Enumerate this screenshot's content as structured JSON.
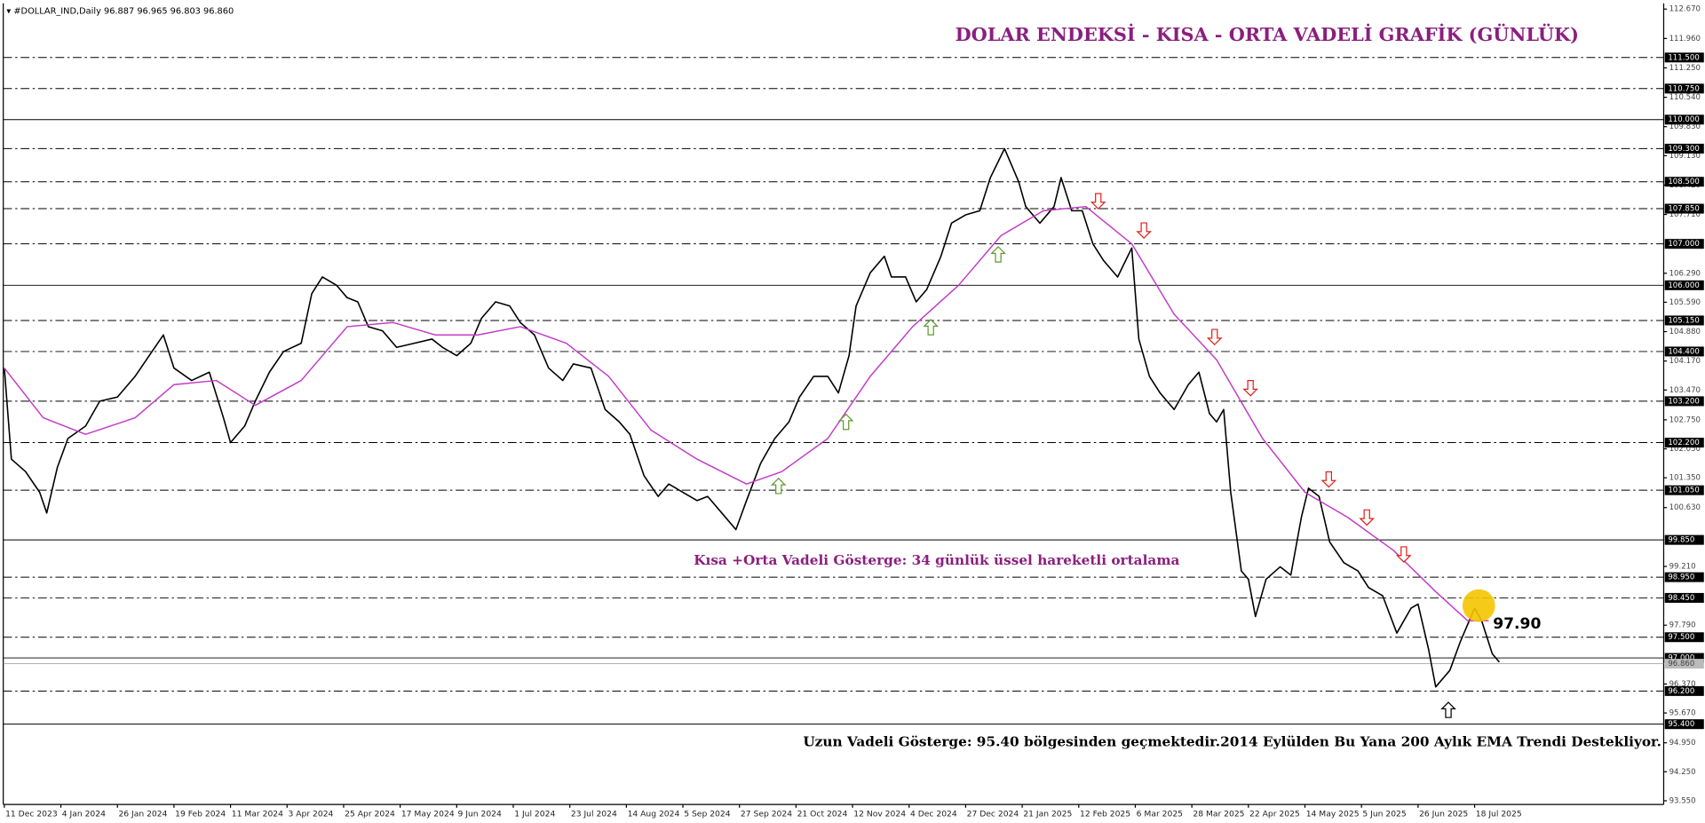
{
  "chart_data": {
    "type": "line",
    "header": "▾ #DOLLAR_IND,Daily  96.887 96.965 96.803 96.860",
    "title": "DOLAR ENDEKSİ - KISA - ORTA VADELİ GRAFİK (GÜNLÜK)",
    "annotations": [
      "Kısa +Orta Vadeli Gösterge: 34 günlük üssel hareketli ortalama",
      "Uzun Vadeli Gösterge: 95.40 bölgesinden geçmektedir.2014 Eylülden Bu Yana 200 Aylık EMA Trendi Destekliyor.",
      "97.90"
    ],
    "series": [
      {
        "color": "#000000",
        "x": [
          0,
          2,
          6,
          10,
          12,
          15,
          18,
          23,
          27,
          32,
          37,
          41,
          45,
          48,
          53,
          58,
          62,
          64,
          68,
          71,
          75,
          79,
          84,
          87,
          90,
          94,
          97,
          100,
          103,
          107,
          111,
          116,
          121,
          124,
          128,
          132,
          135,
          139,
          143,
          146,
          150,
          154,
          158,
          161,
          166,
          170,
          174,
          177,
          181,
          185,
          188,
          192,
          196,
          199,
          203,
          207,
          210,
          214,
          218,
          222,
          225,
          229,
          233,
          236,
          239,
          241,
          245,
          249,
          251,
          255,
          258,
          261,
          265,
          268,
          272,
          276,
          279,
          283,
          287,
          289,
          293,
          297,
          299,
          302,
          305,
          308,
          311,
          315,
          319,
          321,
          324,
          327,
          331,
          335,
          338,
          341,
          343,
          345,
          347,
          350,
          352,
          354,
          357,
          361,
          364,
          367,
          369,
          372,
          375,
          379,
          383,
          386,
          390,
          394,
          398,
          400,
          403,
          405,
          409,
          412,
          416,
          418,
          421,
          423
        ],
        "values": [
          104.0,
          101.8,
          101.5,
          101.0,
          100.5,
          101.6,
          102.3,
          102.6,
          103.2,
          103.3,
          103.8,
          104.3,
          104.8,
          104.0,
          103.7,
          103.9,
          102.8,
          102.2,
          102.6,
          103.2,
          103.9,
          104.4,
          104.6,
          105.8,
          106.2,
          106.0,
          105.7,
          105.6,
          105.0,
          104.9,
          104.5,
          104.6,
          104.7,
          104.5,
          104.3,
          104.6,
          105.2,
          105.6,
          105.5,
          105.1,
          104.8,
          104.0,
          103.7,
          104.1,
          104.0,
          103.0,
          102.7,
          102.4,
          101.4,
          100.9,
          101.2,
          101.0,
          100.8,
          100.9,
          100.5,
          100.1,
          100.8,
          101.7,
          102.3,
          102.7,
          103.3,
          103.8,
          103.8,
          103.4,
          104.3,
          105.5,
          106.3,
          106.7,
          106.2,
          106.2,
          105.6,
          105.9,
          106.7,
          107.5,
          107.7,
          107.8,
          108.6,
          109.3,
          108.5,
          107.9,
          107.5,
          107.9,
          108.6,
          107.8,
          107.8,
          107.0,
          106.6,
          106.2,
          106.9,
          104.7,
          103.8,
          103.4,
          103.0,
          103.6,
          103.9,
          102.9,
          102.7,
          103.0,
          101.0,
          99.1,
          98.9,
          98.0,
          98.9,
          99.2,
          99.0,
          100.4,
          101.1,
          100.9,
          99.8,
          99.3,
          99.1,
          98.7,
          98.5,
          97.6,
          98.2,
          98.3,
          97.2,
          96.3,
          96.7,
          97.4,
          98.2,
          97.9,
          97.1,
          96.9
        ]
      },
      {
        "color": "#c23bc7",
        "x": [
          0,
          11,
          23,
          37,
          48,
          60,
          71,
          84,
          97,
          110,
          122,
          134,
          146,
          159,
          171,
          183,
          196,
          210,
          220,
          233,
          245,
          257,
          270,
          282,
          294,
          306,
          319,
          331,
          343,
          356,
          368,
          380,
          393,
          405,
          414,
          420
        ],
        "values": [
          104.0,
          102.8,
          102.4,
          102.8,
          103.6,
          103.7,
          103.1,
          103.7,
          105.0,
          105.1,
          104.8,
          104.8,
          105.0,
          104.6,
          103.8,
          102.5,
          101.8,
          101.2,
          101.5,
          102.3,
          103.8,
          105.0,
          106.0,
          107.2,
          107.8,
          107.9,
          107.0,
          105.3,
          104.2,
          102.3,
          101.0,
          100.4,
          99.6,
          98.6,
          97.9,
          97.9
        ]
      }
    ],
    "xlim": [
      -0.3,
      469.5
    ],
    "ylim": [
      93.46,
      112.81
    ],
    "xticks": [
      {
        "value": 0,
        "label": "11 Dec 2023"
      },
      {
        "value": 16,
        "label": "4 Jan 2024"
      },
      {
        "value": 32,
        "label": "26 Jan 2024"
      },
      {
        "value": 48,
        "label": "19 Feb 2024"
      },
      {
        "value": 64,
        "label": "11 Mar 2024"
      },
      {
        "value": 80,
        "label": "3 Apr 2024"
      },
      {
        "value": 96,
        "label": "25 Apr 2024"
      },
      {
        "value": 112,
        "label": "17 May 2024"
      },
      {
        "value": 128,
        "label": "9 Jun 2024"
      },
      {
        "value": 144,
        "label": "1 Jul 2024"
      },
      {
        "value": 160,
        "label": "23 Jul 2024"
      },
      {
        "value": 176,
        "label": "14 Aug 2024"
      },
      {
        "value": 192,
        "label": "5 Sep 2024"
      },
      {
        "value": 208,
        "label": "27 Sep 2024"
      },
      {
        "value": 224,
        "label": "21 Oct 2024"
      },
      {
        "value": 240,
        "label": "12 Nov 2024"
      },
      {
        "value": 256,
        "label": "4 Dec 2024"
      },
      {
        "value": 272,
        "label": "27 Dec 2024"
      },
      {
        "value": 288,
        "label": "21 Jan 2025"
      },
      {
        "value": 304,
        "label": "12 Feb 2025"
      },
      {
        "value": 320,
        "label": "6 Mar 2025"
      },
      {
        "value": 336,
        "label": "28 Mar 2025"
      },
      {
        "value": 352,
        "label": "22 Apr 2025"
      },
      {
        "value": 368,
        "label": "14 May 2025"
      },
      {
        "value": 384,
        "label": "5 Jun 2025"
      },
      {
        "value": 400,
        "label": "26 Jun 2025"
      },
      {
        "value": 416,
        "label": "18 Jul 2025"
      }
    ],
    "yticks": [
      {
        "value": 112.67,
        "label": "112.670"
      },
      {
        "value": 111.96,
        "label": "111.960"
      },
      {
        "value": 111.25,
        "label": "111.250"
      },
      {
        "value": 110.54,
        "label": "110.540"
      },
      {
        "value": 109.83,
        "label": "109.830"
      },
      {
        "value": 109.13,
        "label": "109.130"
      },
      {
        "value": 108.42,
        "label": "108.420"
      },
      {
        "value": 107.71,
        "label": "107.710"
      },
      {
        "value": 106.29,
        "label": "106.290"
      },
      {
        "value": 105.59,
        "label": "105.590"
      },
      {
        "value": 104.88,
        "label": "104.880"
      },
      {
        "value": 104.17,
        "label": "104.170"
      },
      {
        "value": 103.47,
        "label": "103.470"
      },
      {
        "value": 102.75,
        "label": "102.750"
      },
      {
        "value": 102.05,
        "label": "102.050"
      },
      {
        "value": 101.35,
        "label": "101.350"
      },
      {
        "value": 100.63,
        "label": "100.630"
      },
      {
        "value": 99.21,
        "label": "99.210"
      },
      {
        "value": 97.79,
        "label": "97.790"
      },
      {
        "value": 96.37,
        "label": "96.370"
      },
      {
        "value": 95.67,
        "label": "95.670"
      },
      {
        "value": 94.95,
        "label": "94.950"
      },
      {
        "value": 94.25,
        "label": "94.250"
      },
      {
        "value": 93.55,
        "label": "93.550"
      }
    ],
    "levels": [
      {
        "value": 111.5,
        "label": "111.500",
        "style": "dashed"
      },
      {
        "value": 110.75,
        "label": "110.750",
        "style": "dashed"
      },
      {
        "value": 110,
        "label": "110.000",
        "style": "solid"
      },
      {
        "value": 109.3,
        "label": "109.300",
        "style": "dashed"
      },
      {
        "value": 108.5,
        "label": "108.500",
        "style": "dashed"
      },
      {
        "value": 107.85,
        "label": "107.850",
        "style": "dashed"
      },
      {
        "value": 107,
        "label": "107.000",
        "style": "dashed"
      },
      {
        "value": 106,
        "label": "106.000",
        "style": "solid"
      },
      {
        "value": 105.15,
        "label": "105.150",
        "style": "dashed"
      },
      {
        "value": 104.4,
        "label": "104.400",
        "style": "dashed"
      },
      {
        "value": 103.2,
        "label": "103.200",
        "style": "dashed"
      },
      {
        "value": 102.2,
        "label": "102.200",
        "style": "dashed"
      },
      {
        "value": 101.05,
        "label": "101.050",
        "style": "dashed"
      },
      {
        "value": 99.85,
        "label": "99.850",
        "style": "solid"
      },
      {
        "value": 98.95,
        "label": "98.950",
        "style": "dashed"
      },
      {
        "value": 98.45,
        "label": "98.450",
        "style": "dashed"
      },
      {
        "value": 97.5,
        "label": "97.500",
        "style": "dashed"
      },
      {
        "value": 97,
        "label": "97.000",
        "style": "solid"
      },
      {
        "value": 96.2,
        "label": "96.200",
        "style": "dashed"
      },
      {
        "value": 95.4,
        "label": "95.400",
        "style": "solid"
      }
    ],
    "last_price": {
      "value": 96.86,
      "label": "96.860"
    }
  }
}
